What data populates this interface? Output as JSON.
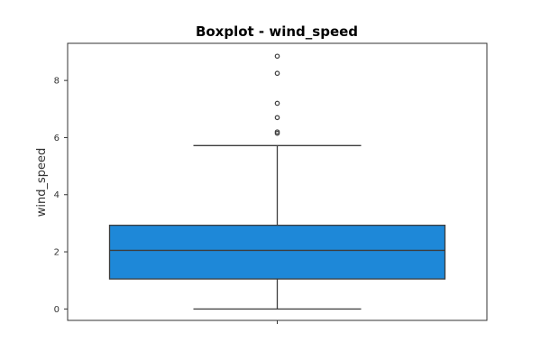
{
  "chart_data": {
    "type": "boxplot",
    "title": "Boxplot - wind_speed",
    "xlabel": "",
    "ylabel": "wind_speed",
    "ylim": [
      -0.4,
      9.3
    ],
    "y_ticks": [
      0,
      2,
      4,
      6,
      8
    ],
    "x_ticks": [
      ""
    ],
    "grid": false,
    "box": {
      "whisker_low": 0.0,
      "q1": 1.05,
      "median": 2.05,
      "q3": 2.93,
      "whisker_high": 5.72,
      "fliers": [
        6.15,
        6.2,
        6.7,
        7.2,
        8.25,
        8.85
      ]
    },
    "colors": {
      "box_fill": "#1e88d8",
      "edge": "#3d3d3d",
      "axis": "#333333"
    }
  }
}
